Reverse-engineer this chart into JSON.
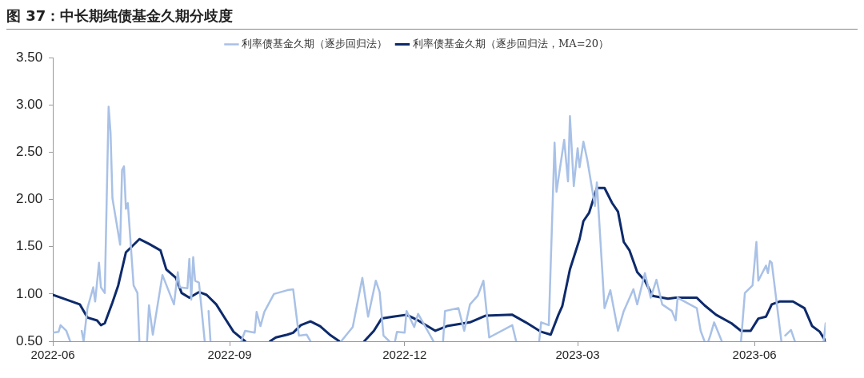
{
  "chart_data": {
    "type": "line",
    "title": "图 37：中长期纯债基金久期分歧度",
    "xlim": [
      "2022-06-01",
      "2023-07-08"
    ],
    "xticks": [
      "2022-06",
      "2022-09",
      "2022-12",
      "2023-03",
      "2023-06"
    ],
    "ylim": [
      0.5,
      3.5
    ],
    "yticks": [
      {
        "value": 0.5,
        "label": "0.50"
      },
      {
        "value": 1,
        "label": "1.00"
      },
      {
        "value": 1.5,
        "label": "1.50"
      },
      {
        "value": 2,
        "label": "2.00"
      },
      {
        "value": 2.5,
        "label": "2.50"
      },
      {
        "value": 3,
        "label": "3.00"
      },
      {
        "value": 3.5,
        "label": "3.50"
      }
    ],
    "grid": false,
    "legend": "top",
    "marker": "none",
    "line_style": "solid",
    "series": [
      {
        "name": "利率债基金久期（逐步回归法）",
        "color": "#a9c1e6",
        "x": [
          "2022-06-01",
          "2022-06-04",
          "2022-06-05",
          "2022-06-08",
          "2022-06-10",
          "2022-06-12",
          "2022-06-16",
          "2022-06-17",
          "2022-06-19",
          "2022-06-22",
          "2022-06-23",
          "2022-06-25",
          "2022-06-26",
          "2022-06-28",
          "2022-06-30",
          "2022-07-01",
          "2022-07-02",
          "2022-07-06",
          "2022-07-07",
          "2022-07-08",
          "2022-07-09",
          "2022-07-10",
          "2022-07-13",
          "2022-07-15",
          "2022-07-16",
          "2022-07-17",
          "2022-07-20",
          "2022-07-21",
          "2022-07-23",
          "2022-07-28",
          "2022-08-03",
          "2022-08-05",
          "2022-08-06",
          "2022-08-10",
          "2022-08-11",
          "2022-08-12",
          "2022-08-13",
          "2022-08-14",
          "2022-08-16",
          "2022-08-19",
          "2022-08-20",
          "2022-08-21",
          "2022-08-22",
          "2022-08-23",
          "2022-09-07",
          "2022-09-09",
          "2022-09-14",
          "2022-09-15",
          "2022-09-17",
          "2022-09-19",
          "2022-09-24",
          "2022-10-01",
          "2022-10-04",
          "2022-10-07",
          "2022-10-11",
          "2022-10-13",
          "2022-10-14",
          "2022-10-29",
          "2022-11-04",
          "2022-11-09",
          "2022-11-12",
          "2022-11-16",
          "2022-11-18",
          "2022-11-20",
          "2022-11-23",
          "2022-11-24",
          "2022-11-26",
          "2022-11-27",
          "2022-12-01",
          "2022-12-02",
          "2022-12-06",
          "2022-12-08",
          "2022-12-16",
          "2022-12-17",
          "2022-12-21",
          "2022-12-22",
          "2022-12-29",
          "2023-01-01",
          "2023-01-04",
          "2023-01-08",
          "2023-01-11",
          "2023-01-14",
          "2023-01-26",
          "2023-01-28",
          "2023-01-29",
          "2023-02-09",
          "2023-02-10",
          "2023-02-14",
          "2023-02-17",
          "2023-02-18",
          "2023-02-22",
          "2023-02-24",
          "2023-02-25",
          "2023-02-27",
          "2023-03-01",
          "2023-03-02",
          "2023-03-04",
          "2023-03-06",
          "2023-03-10",
          "2023-03-11",
          "2023-03-15",
          "2023-03-18",
          "2023-03-22",
          "2023-03-25",
          "2023-03-30",
          "2023-04-01",
          "2023-04-05",
          "2023-04-08",
          "2023-04-11",
          "2023-04-14",
          "2023-04-19",
          "2023-04-21",
          "2023-04-22",
          "2023-05-02",
          "2023-05-04",
          "2023-05-06",
          "2023-05-07",
          "2023-05-08",
          "2023-05-09",
          "2023-05-11",
          "2023-05-15",
          "2023-05-16",
          "2023-05-25",
          "2023-05-27",
          "2023-05-31",
          "2023-06-02",
          "2023-06-03",
          "2023-06-07",
          "2023-06-08",
          "2023-06-09",
          "2023-06-10",
          "2023-06-15",
          "2023-06-16",
          "2023-06-17",
          "2023-06-20",
          "2023-06-22",
          "2023-06-23",
          "2023-07-07",
          "2023-07-08"
        ],
        "values": [
          0.59,
          0.6,
          0.67,
          0.61,
          0.5,
          null,
          0.61,
          0.5,
          0.85,
          1.07,
          0.92,
          1.33,
          1.07,
          1.01,
          2.98,
          2.71,
          2.01,
          1.52,
          2.31,
          2.35,
          1.9,
          1.96,
          1.09,
          1.01,
          0.5,
          null,
          0.5,
          0.88,
          0.57,
          1.2,
          0.89,
          1.23,
          1.07,
          1.06,
          1.37,
          0.94,
          1.39,
          1.14,
          1.12,
          0.5,
          null,
          0.82,
          0.5,
          null,
          0.5,
          0.61,
          0.59,
          0.81,
          0.66,
          0.81,
          1.0,
          1.04,
          1.05,
          0.56,
          0.57,
          0.5,
          null,
          0.5,
          0.65,
          1.17,
          0.76,
          1.14,
          1.02,
          0.56,
          0.5,
          null,
          0.5,
          0.6,
          0.59,
          0.82,
          0.65,
          0.79,
          0.5,
          null,
          0.5,
          0.82,
          0.85,
          0.61,
          0.89,
          0.98,
          1.14,
          0.54,
          0.67,
          0.5,
          null,
          0.5,
          0.7,
          0.67,
          2.6,
          2.08,
          2.63,
          2.19,
          2.88,
          2.14,
          2.54,
          2.34,
          2.61,
          2.42,
          1.93,
          2.18,
          0.85,
          1.04,
          0.61,
          0.82,
          1.05,
          0.89,
          1.22,
          0.96,
          1.15,
          0.89,
          0.82,
          0.72,
          0.96,
          0.85,
          0.61,
          0.5,
          null,
          0.5,
          0.56,
          0.7,
          0.5,
          null,
          0.5,
          1.01,
          1.09,
          1.55,
          1.14,
          1.3,
          1.22,
          1.35,
          1.33,
          0.5,
          null,
          0.56,
          0.62,
          0.5,
          null,
          0.5,
          0.69
        ]
      },
      {
        "name": "利率债基金久期（逐步回归法，MA=20）",
        "color": "#0d2a6b",
        "x": [
          "2022-06-01",
          "2022-06-08",
          "2022-06-15",
          "2022-06-19",
          "2022-06-24",
          "2022-06-26",
          "2022-06-28",
          "2022-07-02",
          "2022-07-05",
          "2022-07-09",
          "2022-07-16",
          "2022-07-21",
          "2022-07-27",
          "2022-07-30",
          "2022-08-04",
          "2022-08-07",
          "2022-08-11",
          "2022-08-16",
          "2022-08-20",
          "2022-08-25",
          "2022-08-29",
          "2022-09-03",
          "2022-09-09",
          "2022-09-13",
          "2022-09-22",
          "2022-09-25",
          "2022-10-01",
          "2022-10-04",
          "2022-10-08",
          "2022-10-13",
          "2022-10-18",
          "2022-10-23",
          "2022-10-28",
          "2022-11-03",
          "2022-11-10",
          "2022-11-15",
          "2022-11-19",
          "2022-11-25",
          "2022-12-02",
          "2022-12-08",
          "2022-12-17",
          "2022-12-23",
          "2023-01-04",
          "2023-01-12",
          "2023-01-26",
          "2023-02-02",
          "2023-02-10",
          "2023-02-15",
          "2023-02-19",
          "2023-02-21",
          "2023-02-25",
          "2023-03-02",
          "2023-03-04",
          "2023-03-07",
          "2023-03-11",
          "2023-03-15",
          "2023-03-19",
          "2023-03-22",
          "2023-03-25",
          "2023-03-28",
          "2023-04-01",
          "2023-04-05",
          "2023-04-09",
          "2023-04-17",
          "2023-04-21",
          "2023-05-02",
          "2023-05-06",
          "2023-05-12",
          "2023-05-20",
          "2023-05-25",
          "2023-05-30",
          "2023-06-03",
          "2023-06-07",
          "2023-06-10",
          "2023-06-14",
          "2023-06-21",
          "2023-06-27",
          "2023-07-01",
          "2023-07-05",
          "2023-07-08"
        ],
        "values": [
          0.99,
          0.94,
          0.89,
          0.75,
          0.72,
          0.67,
          0.69,
          0.91,
          1.09,
          1.44,
          1.58,
          1.53,
          1.46,
          1.26,
          1.17,
          1.01,
          0.96,
          1.02,
          0.99,
          0.89,
          0.76,
          0.6,
          0.5,
          null,
          0.5,
          0.54,
          0.57,
          0.59,
          0.67,
          0.71,
          0.66,
          0.57,
          0.5,
          null,
          0.5,
          0.61,
          0.74,
          0.76,
          0.78,
          0.72,
          0.61,
          0.66,
          0.7,
          0.77,
          0.78,
          0.7,
          0.6,
          0.57,
          0.78,
          0.87,
          1.26,
          1.58,
          1.77,
          1.86,
          2.12,
          2.12,
          1.96,
          1.87,
          1.55,
          1.46,
          1.23,
          1.14,
          0.98,
          0.95,
          0.96,
          0.96,
          0.88,
          0.78,
          0.69,
          0.61,
          0.61,
          0.74,
          0.76,
          0.89,
          0.92,
          0.92,
          0.85,
          0.66,
          0.6,
          0.5
        ]
      }
    ]
  }
}
